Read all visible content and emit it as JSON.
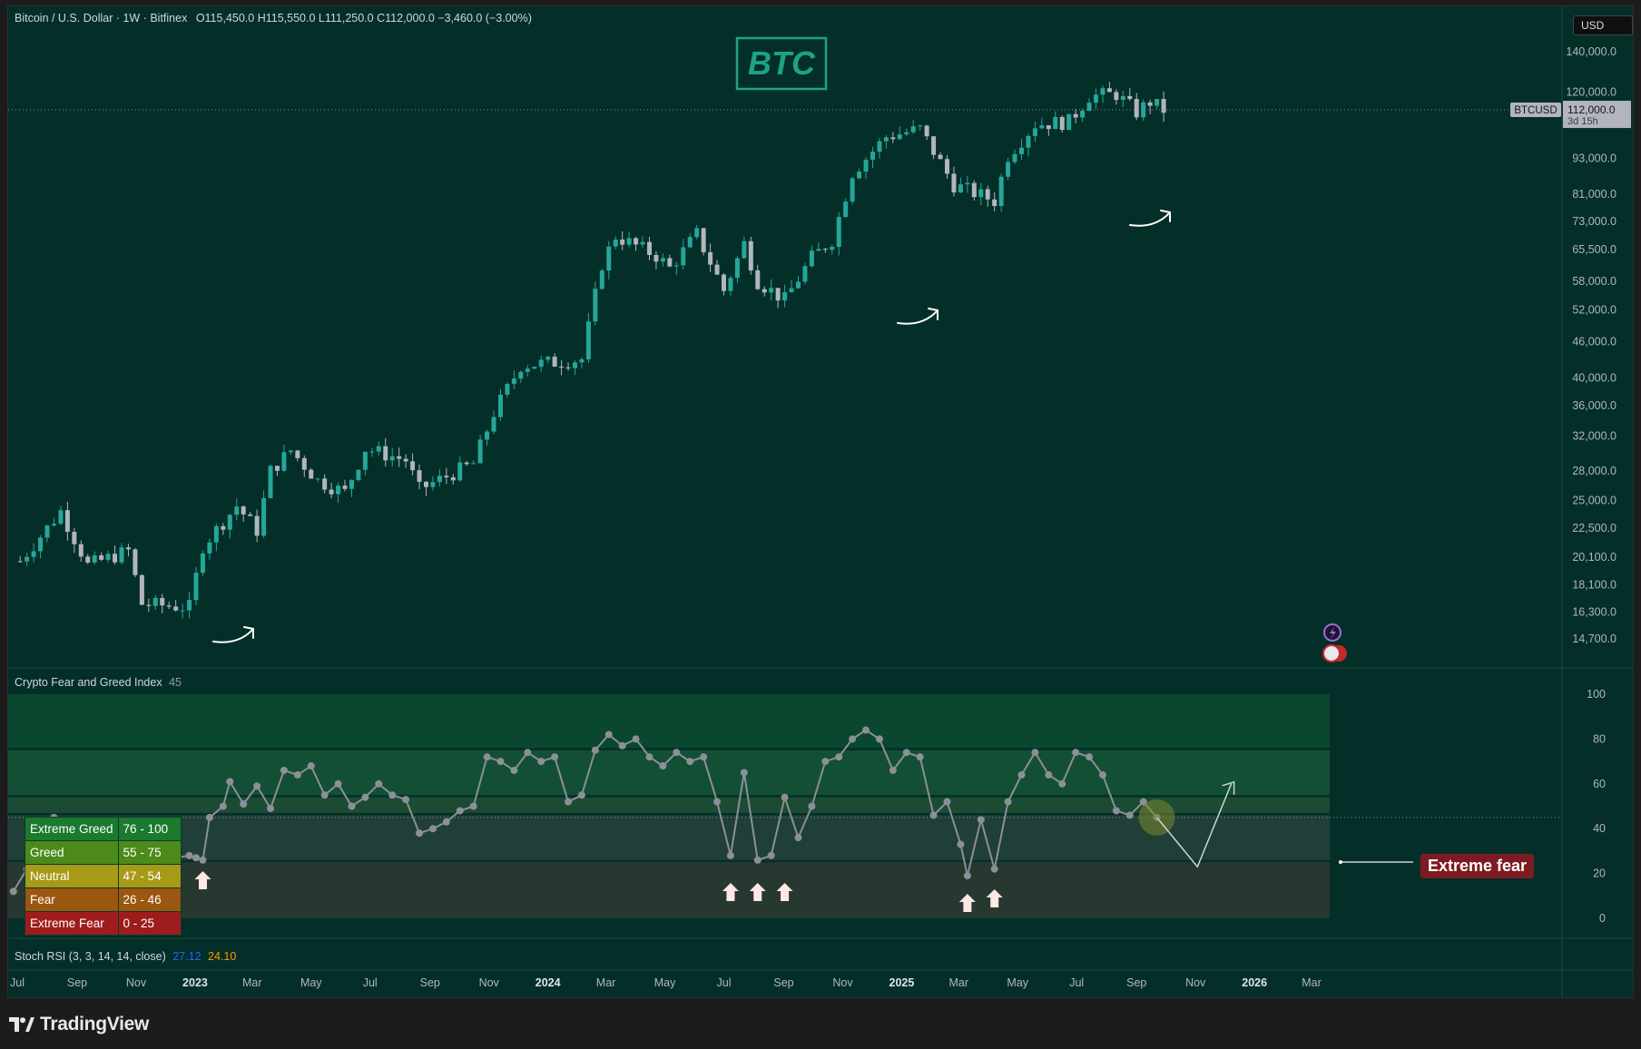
{
  "header": {
    "symbol": "Bitcoin / U.S. Dollar · 1W · Bitfinex",
    "open": "O115,450.0",
    "high": "H115,550.0",
    "low": "L111,250.0",
    "close": "C112,000.0",
    "change": "−3,460.0 (−3.00%)"
  },
  "currency_button": "USD",
  "logo_text": "BTC",
  "price_tag": {
    "symbol": "BTCUSD",
    "price": "112,000.0",
    "countdown": "3d 15h"
  },
  "fg_panel": {
    "title": "Crypto Fear and Greed Index",
    "value": "45",
    "callout": "Extreme fear"
  },
  "stoch_panel": {
    "title": "Stoch RSI (3, 3, 14, 14, close)",
    "k": "27.12",
    "d": "24.10"
  },
  "legend": [
    {
      "name": "Extreme Greed",
      "range": "76 - 100",
      "color": "#1b7a2d"
    },
    {
      "name": "Greed",
      "range": "55 - 75",
      "color": "#4d8a1c"
    },
    {
      "name": "Neutral",
      "range": "47 - 54",
      "color": "#a69a16"
    },
    {
      "name": "Fear",
      "range": "26 - 46",
      "color": "#9b5610"
    },
    {
      "name": "Extreme Fear",
      "range": "0 - 25",
      "color": "#9f1c1c"
    }
  ],
  "brand": "TradingView",
  "colors": {
    "bg": "#032f28",
    "up": "#26a69a",
    "down": "#b2b5be",
    "line": "#8c8f98",
    "accent": "#1fa187"
  },
  "chart_data": [
    {
      "type": "candlestick",
      "title": "Bitcoin / U.S. Dollar · 1W · Bitfinex",
      "scale": "log",
      "ylim": [
        14000,
        150000
      ],
      "y_ticks": [
        "140,000.0",
        "120,000.0",
        "93,000.0",
        "81,000.0",
        "73,000.0",
        "65,500.0",
        "58,000.0",
        "52,000.0",
        "46,000.0",
        "40,000.0",
        "36,000.0",
        "32,000.0",
        "28,000.0",
        "25,000.0",
        "22,500.0",
        "20,100.0",
        "18,100.0",
        "16,300.0",
        "14,700.0"
      ],
      "x_ticks": [
        "Jul",
        "Sep",
        "Nov",
        "2023",
        "Mar",
        "May",
        "Jul",
        "Sep",
        "Nov",
        "2024",
        "Mar",
        "May",
        "Jul",
        "Sep",
        "Nov",
        "2025",
        "Mar",
        "May",
        "Jul",
        "Sep",
        "Nov",
        "2026",
        "Mar"
      ],
      "last_price": 112000,
      "price_path": [
        [
          "2022-07-04",
          19800
        ],
        [
          "2022-08-15",
          24000
        ],
        [
          "2022-09-12",
          19500
        ],
        [
          "2022-10-24",
          20600
        ],
        [
          "2022-11-07",
          16800
        ],
        [
          "2022-12-26",
          16600
        ],
        [
          "2023-01-09",
          21000
        ],
        [
          "2023-02-13",
          24500
        ],
        [
          "2023-03-06",
          22300
        ],
        [
          "2023-03-20",
          28000
        ],
        [
          "2023-04-10",
          30300
        ],
        [
          "2023-05-08",
          27000
        ],
        [
          "2023-06-05",
          25800
        ],
        [
          "2023-06-26",
          30500
        ],
        [
          "2023-08-07",
          29200
        ],
        [
          "2023-08-21",
          26100
        ],
        [
          "2023-10-16",
          28800
        ],
        [
          "2023-11-06",
          35000
        ],
        [
          "2023-12-04",
          42000
        ],
        [
          "2024-01-08",
          42500
        ],
        [
          "2024-02-05",
          43000
        ],
        [
          "2024-02-26",
          62000
        ],
        [
          "2024-03-11",
          69000
        ],
        [
          "2024-04-22",
          64000
        ],
        [
          "2024-05-06",
          61000
        ],
        [
          "2024-06-03",
          69500
        ],
        [
          "2024-07-01",
          56000
        ],
        [
          "2024-07-22",
          67000
        ],
        [
          "2024-08-05",
          58000
        ],
        [
          "2024-09-02",
          54000
        ],
        [
          "2024-09-30",
          63500
        ],
        [
          "2024-10-21",
          68000
        ],
        [
          "2024-11-11",
          88000
        ],
        [
          "2024-12-16",
          101000
        ],
        [
          "2025-01-20",
          104000
        ],
        [
          "2025-02-24",
          84000
        ],
        [
          "2025-04-07",
          79000
        ],
        [
          "2025-04-21",
          94000
        ],
        [
          "2025-05-19",
          106000
        ],
        [
          "2025-06-23",
          107000
        ],
        [
          "2025-07-14",
          118000
        ],
        [
          "2025-08-11",
          119000
        ],
        [
          "2025-09-01",
          111000
        ],
        [
          "2025-09-15",
          115500
        ],
        [
          "2025-09-29",
          112000
        ]
      ],
      "annotations": [
        "arrow-up-2022-12",
        "arrow-up-2024-09",
        "arrow-up-2025-04"
      ]
    },
    {
      "type": "line",
      "title": "Crypto Fear and Greed Index",
      "ylim": [
        0,
        100
      ],
      "y_ticks": [
        100,
        80,
        60,
        40,
        20,
        0
      ],
      "bands": [
        [
          76,
          100
        ],
        [
          55,
          75
        ],
        [
          47,
          54
        ],
        [
          26,
          46
        ],
        [
          0,
          25
        ]
      ],
      "series": [
        {
          "values": [
            [
              "2022-06-27",
              12
            ],
            [
              "2022-07-11",
              22
            ],
            [
              "2022-07-25",
              32
            ],
            [
              "2022-08-08",
              45
            ],
            [
              "2022-08-22",
              30
            ],
            [
              "2022-09-05",
              24
            ],
            [
              "2022-09-19",
              24
            ],
            [
              "2022-10-03",
              22
            ],
            [
              "2022-10-17",
              28
            ],
            [
              "2022-10-31",
              36
            ],
            [
              "2022-11-14",
              22
            ],
            [
              "2022-11-28",
              26
            ],
            [
              "2022-12-12",
              27
            ],
            [
              "2022-12-26",
              28
            ],
            [
              "2023-01-02",
              27
            ],
            [
              "2023-01-09",
              26
            ],
            [
              "2023-01-16",
              45
            ],
            [
              "2023-01-30",
              50
            ],
            [
              "2023-02-06",
              61
            ],
            [
              "2023-02-20",
              51
            ],
            [
              "2023-03-06",
              59
            ],
            [
              "2023-03-20",
              49
            ],
            [
              "2023-04-03",
              66
            ],
            [
              "2023-04-17",
              64
            ],
            [
              "2023-05-01",
              68
            ],
            [
              "2023-05-15",
              55
            ],
            [
              "2023-05-29",
              60
            ],
            [
              "2023-06-12",
              50
            ],
            [
              "2023-06-26",
              54
            ],
            [
              "2023-07-10",
              60
            ],
            [
              "2023-07-24",
              55
            ],
            [
              "2023-08-07",
              53
            ],
            [
              "2023-08-21",
              38
            ],
            [
              "2023-09-04",
              40
            ],
            [
              "2023-09-18",
              43
            ],
            [
              "2023-10-02",
              48
            ],
            [
              "2023-10-16",
              50
            ],
            [
              "2023-10-30",
              72
            ],
            [
              "2023-11-13",
              70
            ],
            [
              "2023-11-27",
              66
            ],
            [
              "2023-12-11",
              74
            ],
            [
              "2023-12-25",
              70
            ],
            [
              "2024-01-08",
              72
            ],
            [
              "2024-01-22",
              52
            ],
            [
              "2024-02-05",
              55
            ],
            [
              "2024-02-19",
              75
            ],
            [
              "2024-03-04",
              82
            ],
            [
              "2024-03-18",
              77
            ],
            [
              "2024-04-01",
              80
            ],
            [
              "2024-04-15",
              72
            ],
            [
              "2024-04-29",
              68
            ],
            [
              "2024-05-13",
              74
            ],
            [
              "2024-05-27",
              70
            ],
            [
              "2024-06-10",
              72
            ],
            [
              "2024-06-24",
              52
            ],
            [
              "2024-07-08",
              28
            ],
            [
              "2024-07-22",
              65
            ],
            [
              "2024-08-05",
              26
            ],
            [
              "2024-08-19",
              28
            ],
            [
              "2024-09-02",
              54
            ],
            [
              "2024-09-16",
              36
            ],
            [
              "2024-09-30",
              50
            ],
            [
              "2024-10-14",
              70
            ],
            [
              "2024-10-28",
              72
            ],
            [
              "2024-11-11",
              80
            ],
            [
              "2024-11-25",
              84
            ],
            [
              "2024-12-09",
              80
            ],
            [
              "2024-12-23",
              66
            ],
            [
              "2025-01-06",
              74
            ],
            [
              "2025-01-20",
              72
            ],
            [
              "2025-02-03",
              46
            ],
            [
              "2025-02-17",
              52
            ],
            [
              "2025-03-03",
              33
            ],
            [
              "2025-03-10",
              19
            ],
            [
              "2025-03-24",
              44
            ],
            [
              "2025-04-07",
              22
            ],
            [
              "2025-04-21",
              52
            ],
            [
              "2025-05-05",
              64
            ],
            [
              "2025-05-19",
              74
            ],
            [
              "2025-06-02",
              64
            ],
            [
              "2025-06-16",
              60
            ],
            [
              "2025-06-30",
              74
            ],
            [
              "2025-07-14",
              72
            ],
            [
              "2025-07-28",
              64
            ],
            [
              "2025-08-11",
              48
            ],
            [
              "2025-08-25",
              46
            ],
            [
              "2025-09-08",
              52
            ],
            [
              "2025-09-22",
              45
            ]
          ]
        }
      ],
      "projection": [
        [
          "2025-09-22",
          45
        ],
        [
          "2025-10-13",
          34
        ],
        [
          "2025-11-03",
          23
        ],
        [
          "2025-12-08",
          60
        ]
      ],
      "last_value": 45,
      "annotations": [
        "fear-arrow-2023-01",
        "fear-arrow-2024-07",
        "fear-arrow-2024-08",
        "fear-arrow-2024-09",
        "fear-arrow-2025-03",
        "fear-arrow-2025-04"
      ]
    }
  ]
}
